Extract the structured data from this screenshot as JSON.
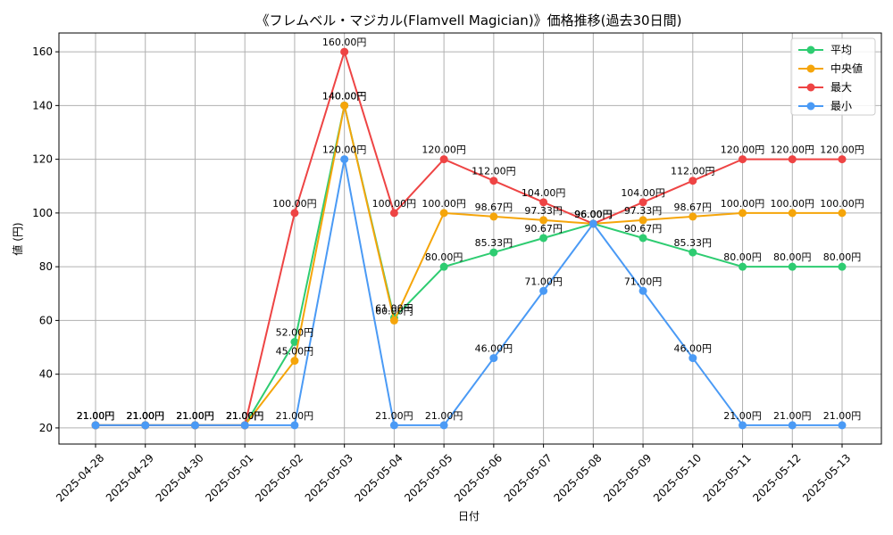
{
  "chart_data": {
    "type": "line",
    "title": "《フレムベル・マジカル(Flamvell Magician)》価格推移(過去30日間)",
    "xlabel": "日付",
    "ylabel": "値 (円)",
    "label_suffix": "円",
    "ylim": [
      14,
      167
    ],
    "yticks": [
      20,
      40,
      60,
      80,
      100,
      120,
      140,
      160
    ],
    "grid": true,
    "legend_position": "top-right",
    "categories": [
      "2025-04-28",
      "2025-04-29",
      "2025-04-30",
      "2025-05-01",
      "2025-05-02",
      "2025-05-03",
      "2025-05-04",
      "2025-05-05",
      "2025-05-06",
      "2025-05-07",
      "2025-05-08",
      "2025-05-09",
      "2025-05-10",
      "2025-05-11",
      "2025-05-12",
      "2025-05-13"
    ],
    "series": [
      {
        "name": "平均",
        "color": "#2ecc71",
        "values": [
          21,
          21,
          21,
          21,
          52,
          140,
          61,
          80,
          85.33,
          90.67,
          96,
          90.67,
          85.33,
          80,
          80,
          80
        ]
      },
      {
        "name": "中央値",
        "color": "#f5a50a",
        "values": [
          21,
          21,
          21,
          21,
          45,
          140,
          60,
          100,
          98.67,
          97.33,
          96,
          97.33,
          98.67,
          100,
          100,
          100
        ]
      },
      {
        "name": "最大",
        "color": "#ee4444",
        "values": [
          21,
          21,
          21,
          21,
          100,
          160,
          100,
          120,
          112,
          104,
          96,
          104,
          112,
          120,
          120,
          120
        ]
      },
      {
        "name": "最小",
        "color": "#4a9af5",
        "values": [
          21,
          21,
          21,
          21,
          21,
          120,
          21,
          21,
          46,
          71,
          96,
          71,
          46,
          21,
          21,
          21
        ]
      }
    ]
  }
}
